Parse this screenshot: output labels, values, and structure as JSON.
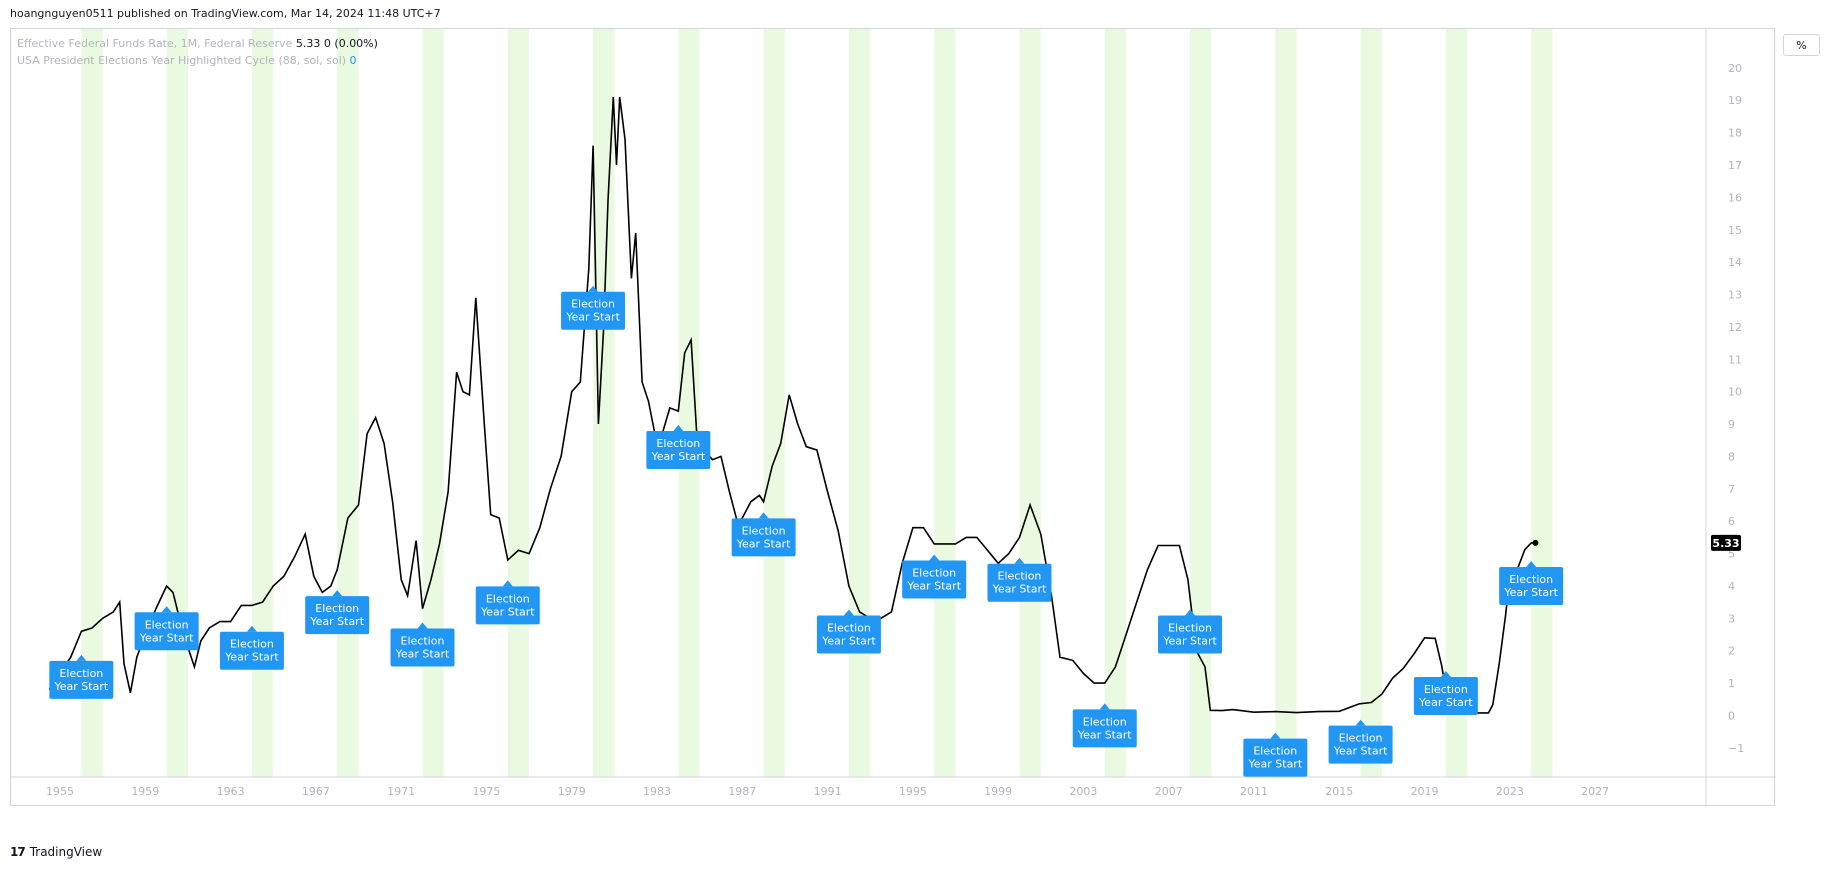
{
  "header": {
    "published_by": "hoangnguyen0511 published on TradingView.com, Mar 14, 2024 11:48 UTC+7"
  },
  "legend": {
    "series1_name": "Effective Federal Funds Rate, 1M, Federal Reserve",
    "series1_value": "5.33",
    "series1_change": "0 (0.00%)",
    "series2_name": "USA President Elections Year Highlighted Cycle (88, sol, sol)",
    "series2_value": "0"
  },
  "scale_button": "%",
  "footer": {
    "brand": "TradingView",
    "logo_glyph": "17"
  },
  "last_value_label": "5.33",
  "colors": {
    "line": "#000000",
    "election_band": "#d9f5c8",
    "label_bg": "#2196f3",
    "axis_text": "#b2b5be"
  },
  "chart_data": {
    "type": "line",
    "title": "Effective Federal Funds Rate",
    "ylabel": "%",
    "ylim": [
      -1.9,
      21.2
    ],
    "xlim": [
      1952.7,
      2032.2
    ],
    "x_ticks": [
      "1955",
      "1959",
      "1963",
      "1967",
      "1971",
      "1975",
      "1979",
      "1983",
      "1987",
      "1991",
      "1995",
      "1999",
      "2003",
      "2007",
      "2011",
      "2015",
      "2019",
      "2023",
      "2027"
    ],
    "y_ticks": [
      "20",
      "19",
      "18",
      "17",
      "16",
      "15",
      "14",
      "13",
      "12",
      "11",
      "10",
      "9",
      "8",
      "7",
      "6",
      "5",
      "4",
      "3",
      "2",
      "1",
      "0",
      "−1"
    ],
    "election_years": [
      1956,
      1960,
      1964,
      1968,
      1972,
      1976,
      1980,
      1984,
      1988,
      1992,
      1996,
      2000,
      2004,
      2008,
      2012,
      2016,
      2020,
      2024
    ],
    "election_label": "Election Year Start",
    "election_label_lines": [
      "Election",
      "Year Start"
    ],
    "election_label_levels": [
      1.1,
      2.6,
      2.0,
      3.1,
      2.1,
      3.4,
      12.5,
      8.2,
      5.5,
      2.5,
      4.2,
      4.1,
      -0.4,
      2.5,
      -1.3,
      -0.9,
      0.6,
      4.0
    ],
    "series": [
      {
        "name": "Effective Federal Funds Rate",
        "x": [
          1954.5,
          1954.8,
          1955.0,
          1955.5,
          1956.0,
          1956.5,
          1957.0,
          1957.5,
          1957.8,
          1958.0,
          1958.3,
          1958.6,
          1959.0,
          1959.5,
          1960.0,
          1960.3,
          1960.6,
          1961.0,
          1961.3,
          1961.6,
          1962.0,
          1962.5,
          1963.0,
          1963.5,
          1964.0,
          1964.5,
          1965.0,
          1965.5,
          1966.0,
          1966.5,
          1966.9,
          1967.3,
          1967.7,
          1968.0,
          1968.5,
          1969.0,
          1969.4,
          1969.8,
          1970.2,
          1970.6,
          1971.0,
          1971.3,
          1971.7,
          1972.0,
          1972.4,
          1972.8,
          1973.2,
          1973.6,
          1973.9,
          1974.2,
          1974.5,
          1974.9,
          1975.2,
          1975.6,
          1976.0,
          1976.5,
          1977.0,
          1977.5,
          1978.0,
          1978.5,
          1979.0,
          1979.4,
          1979.8,
          1980.0,
          1980.25,
          1980.5,
          1980.7,
          1980.95,
          1981.1,
          1981.25,
          1981.5,
          1981.8,
          1982.0,
          1982.3,
          1982.6,
          1982.9,
          1983.2,
          1983.6,
          1984.0,
          1984.3,
          1984.6,
          1984.9,
          1985.2,
          1985.6,
          1986.0,
          1986.4,
          1986.8,
          1987.0,
          1987.4,
          1987.8,
          1988.0,
          1988.4,
          1988.8,
          1989.2,
          1989.6,
          1990.0,
          1990.5,
          1991.0,
          1991.5,
          1992.0,
          1992.5,
          1993.0,
          1993.5,
          1994.0,
          1994.5,
          1995.0,
          1995.5,
          1996.0,
          1996.5,
          1997.0,
          1997.5,
          1998.0,
          1998.5,
          1999.0,
          1999.5,
          2000.0,
          2000.5,
          2001.0,
          2001.5,
          2001.9,
          2002.5,
          2003.0,
          2003.5,
          2004.0,
          2004.5,
          2005.0,
          2005.5,
          2006.0,
          2006.5,
          2007.0,
          2007.5,
          2007.9,
          2008.3,
          2008.7,
          2008.95,
          2009.5,
          2010.0,
          2011.0,
          2012.0,
          2013.0,
          2014.0,
          2015.0,
          2015.95,
          2016.5,
          2017.0,
          2017.5,
          2018.0,
          2018.5,
          2019.0,
          2019.5,
          2019.8,
          2020.2,
          2020.5,
          2021.0,
          2022.0,
          2022.2,
          2022.5,
          2022.8,
          2023.0,
          2023.4,
          2023.7,
          2024.0,
          2024.2
        ],
        "values": [
          0.8,
          1.2,
          1.3,
          1.8,
          2.6,
          2.7,
          3.0,
          3.2,
          3.5,
          1.6,
          0.7,
          1.8,
          2.5,
          3.3,
          4.0,
          3.8,
          3.0,
          2.1,
          1.5,
          2.3,
          2.7,
          2.9,
          2.9,
          3.4,
          3.4,
          3.5,
          4.0,
          4.3,
          4.9,
          5.6,
          4.3,
          3.8,
          4.0,
          4.5,
          6.1,
          6.5,
          8.7,
          9.2,
          8.4,
          6.6,
          4.2,
          3.7,
          5.4,
          3.3,
          4.2,
          5.3,
          6.9,
          10.6,
          10.0,
          9.9,
          12.9,
          9.0,
          6.2,
          6.1,
          4.8,
          5.1,
          5.0,
          5.8,
          7.0,
          8.0,
          10.0,
          10.3,
          13.8,
          17.6,
          9.0,
          12.0,
          15.9,
          19.1,
          17.0,
          19.1,
          17.8,
          13.5,
          14.9,
          10.3,
          9.7,
          8.7,
          8.6,
          9.5,
          9.4,
          11.2,
          11.6,
          8.3,
          8.2,
          7.9,
          8.0,
          6.9,
          5.9,
          6.1,
          6.6,
          6.8,
          6.6,
          7.7,
          8.4,
          9.9,
          9.0,
          8.3,
          8.2,
          6.9,
          5.7,
          4.0,
          3.2,
          3.0,
          3.0,
          3.2,
          4.7,
          5.8,
          5.8,
          5.3,
          5.3,
          5.3,
          5.5,
          5.5,
          5.1,
          4.7,
          5.0,
          5.5,
          6.5,
          5.6,
          3.7,
          1.8,
          1.7,
          1.3,
          1.0,
          1.0,
          1.5,
          2.5,
          3.5,
          4.5,
          5.25,
          5.25,
          5.25,
          4.2,
          2.0,
          1.5,
          0.16,
          0.15,
          0.18,
          0.1,
          0.12,
          0.09,
          0.12,
          0.13,
          0.36,
          0.4,
          0.66,
          1.15,
          1.45,
          1.9,
          2.4,
          2.38,
          1.55,
          0.08,
          0.09,
          0.08,
          0.08,
          0.33,
          1.6,
          3.1,
          4.3,
          4.6,
          5.12,
          5.33,
          5.33
        ]
      }
    ]
  }
}
